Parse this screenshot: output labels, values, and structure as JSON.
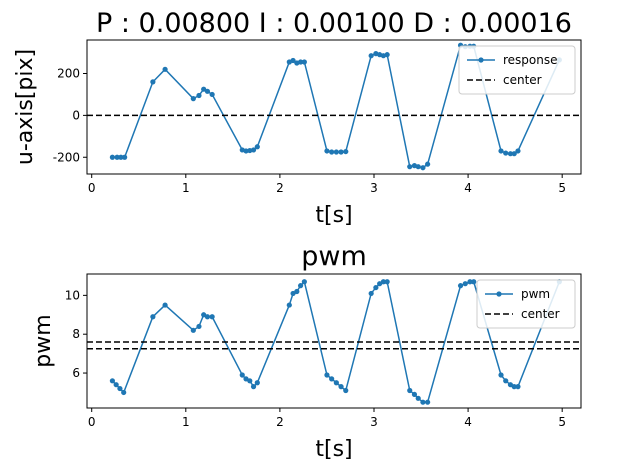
{
  "chart_data": [
    {
      "type": "line",
      "title": "P : 0.00800   I : 0.00100   D : 0.00016",
      "xlabel": "t[s]",
      "ylabel": "u-axis[pix]",
      "xlim": [
        -0.05,
        5.2
      ],
      "ylim": [
        -280,
        360
      ],
      "xticks": [
        0,
        1,
        2,
        3,
        4,
        5
      ],
      "yticks": [
        -200,
        0,
        200
      ],
      "grid": false,
      "legend_position": "top-right",
      "series": [
        {
          "name": "response",
          "color": "#1f77b4",
          "style": "line-with-markers",
          "x": [
            0.22,
            0.27,
            0.31,
            0.35,
            0.65,
            0.78,
            1.08,
            1.14,
            1.19,
            1.23,
            1.28,
            1.6,
            1.64,
            1.68,
            1.72,
            1.76,
            2.1,
            2.14,
            2.18,
            2.22,
            2.26,
            2.5,
            2.55,
            2.6,
            2.65,
            2.7,
            2.97,
            3.02,
            3.06,
            3.1,
            3.14,
            3.38,
            3.43,
            3.47,
            3.52,
            3.57,
            3.92,
            3.97,
            4.02,
            4.06,
            4.35,
            4.4,
            4.45,
            4.49,
            4.53,
            4.97
          ],
          "y": [
            -200,
            -200,
            -200,
            -200,
            160,
            220,
            80,
            95,
            125,
            115,
            100,
            -165,
            -170,
            -168,
            -165,
            -150,
            255,
            262,
            250,
            255,
            255,
            -170,
            -175,
            -175,
            -175,
            -173,
            285,
            295,
            290,
            285,
            290,
            -245,
            -240,
            -245,
            -250,
            -233,
            335,
            328,
            330,
            330,
            -170,
            -180,
            -183,
            -183,
            -170,
            265
          ]
        },
        {
          "name": "center",
          "color": "#000000",
          "style": "dashed",
          "x": [
            -0.05,
            5.2
          ],
          "y": [
            0,
            0
          ]
        }
      ]
    },
    {
      "type": "line",
      "title": "pwm",
      "xlabel": "t[s]",
      "ylabel": "pwm",
      "xlim": [
        -0.05,
        5.2
      ],
      "ylim": [
        4.2,
        11.1
      ],
      "xticks": [
        0,
        1,
        2,
        3,
        4,
        5
      ],
      "yticks": [
        6,
        8,
        10
      ],
      "grid": false,
      "legend_position": "top-right",
      "series": [
        {
          "name": "pwm",
          "color": "#1f77b4",
          "style": "line-with-markers",
          "x": [
            0.22,
            0.26,
            0.3,
            0.34,
            0.65,
            0.78,
            1.08,
            1.14,
            1.19,
            1.23,
            1.28,
            1.6,
            1.64,
            1.68,
            1.72,
            1.76,
            2.1,
            2.14,
            2.18,
            2.22,
            2.26,
            2.5,
            2.55,
            2.6,
            2.65,
            2.7,
            2.97,
            3.02,
            3.06,
            3.1,
            3.14,
            3.38,
            3.43,
            3.47,
            3.52,
            3.57,
            3.92,
            3.97,
            4.02,
            4.06,
            4.35,
            4.4,
            4.45,
            4.49,
            4.53,
            4.97
          ],
          "y": [
            5.6,
            5.4,
            5.2,
            5.0,
            8.9,
            9.5,
            8.2,
            8.4,
            9.0,
            8.9,
            8.9,
            5.9,
            5.7,
            5.6,
            5.3,
            5.5,
            9.5,
            10.1,
            10.2,
            10.5,
            10.7,
            5.9,
            5.7,
            5.5,
            5.3,
            5.1,
            10.1,
            10.4,
            10.6,
            10.7,
            10.7,
            5.1,
            4.9,
            4.7,
            4.5,
            4.5,
            10.5,
            10.6,
            10.7,
            10.7,
            5.9,
            5.6,
            5.4,
            5.3,
            5.3,
            10.7
          ]
        },
        {
          "name": "center",
          "color": "#000000",
          "style": "dashed",
          "x": [
            -0.05,
            5.2
          ],
          "y": [
            7.6,
            7.6
          ]
        },
        {
          "name": "center",
          "color": "#000000",
          "style": "dashed",
          "x": [
            -0.05,
            5.2
          ],
          "y": [
            7.25,
            7.25
          ]
        }
      ]
    }
  ]
}
